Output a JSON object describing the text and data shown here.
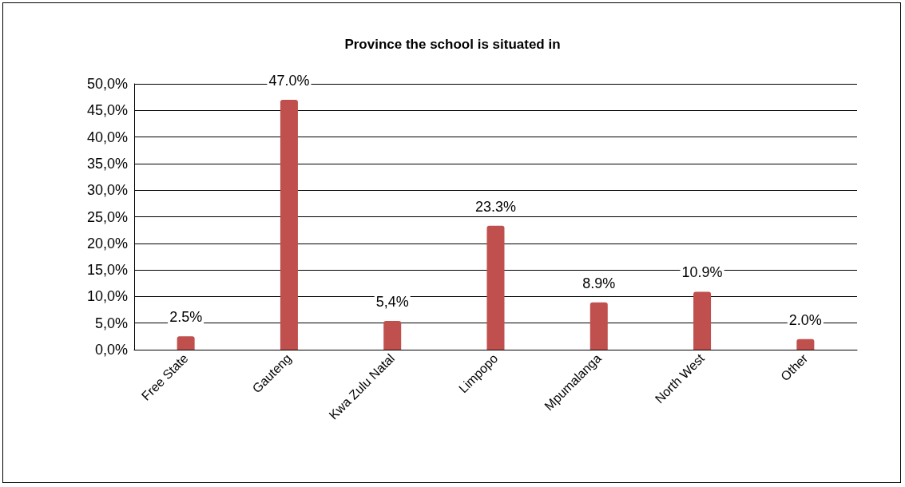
{
  "chart_data": {
    "type": "bar",
    "title": "Province the school is situated in",
    "categories": [
      "Free State",
      "Gauteng",
      "Kwa Zulu Natal",
      "Limpopo",
      "Mpumalanga",
      "North West",
      "Other"
    ],
    "values": [
      2.5,
      47.0,
      5.4,
      23.3,
      8.9,
      10.9,
      2.0
    ],
    "value_labels": [
      "2.5%",
      "47.0%",
      "5,4%",
      "23.3%",
      "8.9%",
      "10.9%",
      "2.0%"
    ],
    "color": "#c0504d",
    "ylim": [
      0,
      50
    ],
    "yticks": [
      {
        "value": 0,
        "label": "0,0%"
      },
      {
        "value": 5,
        "label": "5,0%"
      },
      {
        "value": 10,
        "label": "10,0%"
      },
      {
        "value": 15,
        "label": "15,0%"
      },
      {
        "value": 20,
        "label": "20,0%"
      },
      {
        "value": 25,
        "label": "25,0%"
      },
      {
        "value": 30,
        "label": "30,0%"
      },
      {
        "value": 35,
        "label": "35,0%"
      },
      {
        "value": 40,
        "label": "40,0%"
      },
      {
        "value": 45,
        "label": "45,0%"
      },
      {
        "value": 50,
        "label": "50,0%"
      }
    ],
    "grid": true
  }
}
